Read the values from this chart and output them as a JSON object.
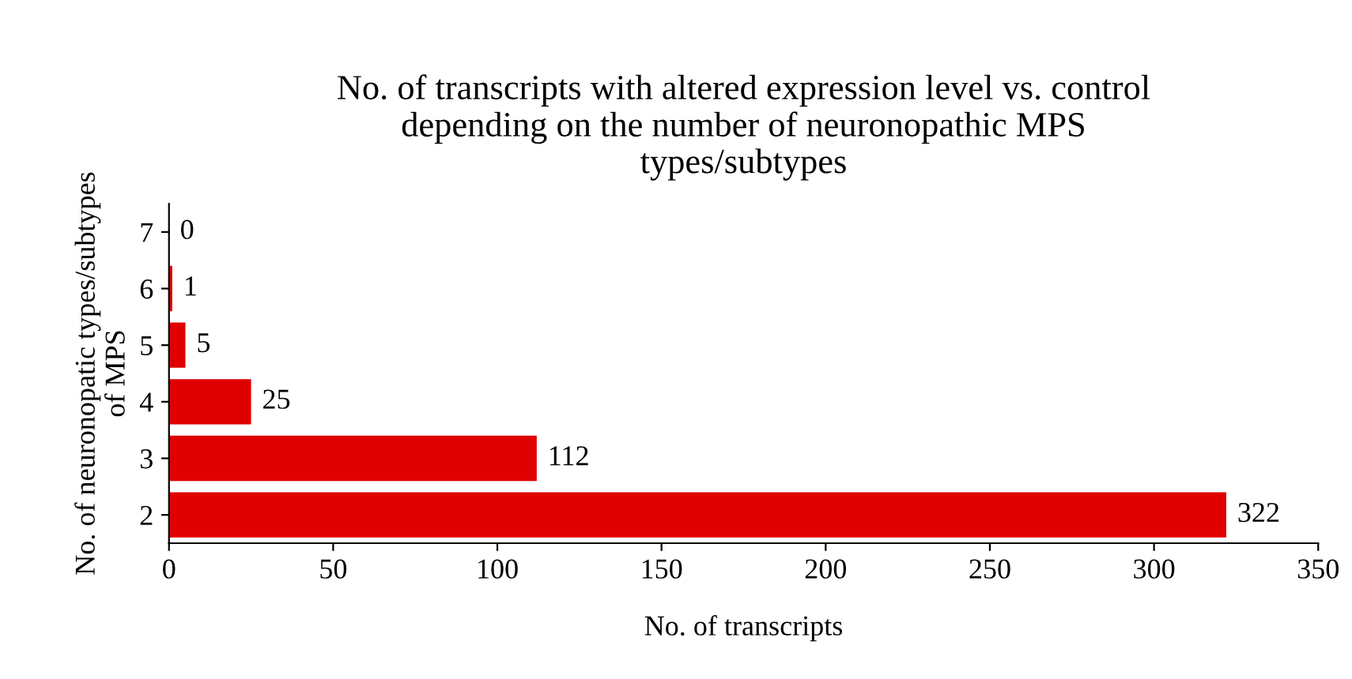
{
  "chart_data": {
    "type": "bar",
    "orientation": "horizontal",
    "title": "No. of transcripts with altered expression level vs. control\ndepending on the number of neuronopathic MPS\ntypes/subtypes",
    "xlabel": "No. of transcripts",
    "ylabel": "No. of neuronopatic types/subtypes\nof MPS",
    "categories": [
      "7",
      "6",
      "5",
      "4",
      "3",
      "2"
    ],
    "values": [
      0,
      1,
      5,
      25,
      112,
      322
    ],
    "color": "#e00000",
    "xlim": [
      0,
      350
    ],
    "xticks": [
      0,
      50,
      100,
      150,
      200,
      250,
      300,
      350
    ],
    "data_labels": true,
    "grid": false,
    "legend": false
  }
}
